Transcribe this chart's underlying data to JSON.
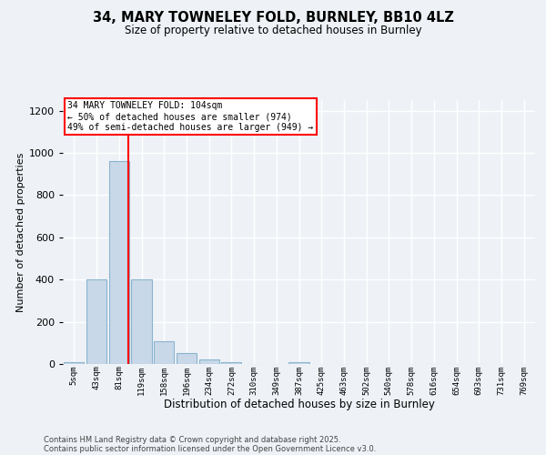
{
  "title1": "34, MARY TOWNELEY FOLD, BURNLEY, BB10 4LZ",
  "title2": "Size of property relative to detached houses in Burnley",
  "xlabel": "Distribution of detached houses by size in Burnley",
  "ylabel": "Number of detached properties",
  "bar_labels": [
    "5sqm",
    "43sqm",
    "81sqm",
    "119sqm",
    "158sqm",
    "196sqm",
    "234sqm",
    "272sqm",
    "310sqm",
    "349sqm",
    "387sqm",
    "425sqm",
    "463sqm",
    "502sqm",
    "540sqm",
    "578sqm",
    "616sqm",
    "654sqm",
    "693sqm",
    "731sqm",
    "769sqm"
  ],
  "bar_values": [
    10,
    400,
    960,
    400,
    108,
    52,
    20,
    10,
    0,
    0,
    10,
    0,
    0,
    0,
    0,
    0,
    0,
    0,
    0,
    0,
    0
  ],
  "bar_color": "#c8d8e8",
  "bar_edgecolor": "#8ab4d0",
  "annotation_line1": "34 MARY TOWNELEY FOLD: 104sqm",
  "annotation_line2": "← 50% of detached houses are smaller (974)",
  "annotation_line3": "49% of semi-detached houses are larger (949) →",
  "redline_color": "red",
  "ylim": [
    0,
    1250
  ],
  "yticks": [
    0,
    200,
    400,
    600,
    800,
    1000,
    1200
  ],
  "footer1": "Contains HM Land Registry data © Crown copyright and database right 2025.",
  "footer2": "Contains public sector information licensed under the Open Government Licence v3.0.",
  "background_color": "#eef2f7",
  "grid_color": "#ffffff"
}
